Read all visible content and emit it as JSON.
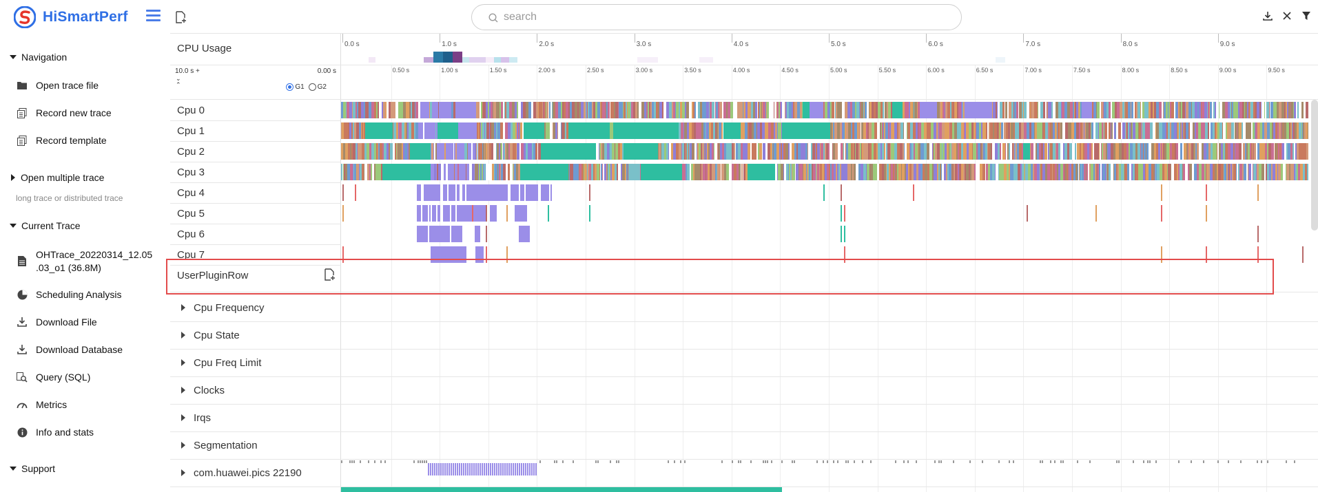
{
  "app": {
    "title": "HiSmartPerf"
  },
  "search": {
    "placeholder": "search"
  },
  "sidebar": {
    "sections": [
      {
        "label": "Navigation",
        "items": [
          "Open trace file",
          "Record new trace",
          "Record template"
        ]
      },
      {
        "label": "Open multiple trace",
        "sub": "long trace or distributed trace"
      },
      {
        "label": "Current Trace",
        "items": [
          "OHTrace_20220314_12.05",
          ".03_o1 (36.8M)",
          "Scheduling Analysis",
          "Download File",
          "Download Database",
          "Query (SQL)",
          "Metrics",
          "Info and stats"
        ]
      },
      {
        "label": "Support"
      }
    ]
  },
  "timeline": {
    "cpu_usage_label": "CPU Usage",
    "range_start": "10.0 s",
    "range_plus": "+",
    "range_end": "0.00 s",
    "radio_g1": "G1",
    "radio_g2": "G2",
    "top_ticks": [
      "0.0 s",
      "1.0 s",
      "2.0 s",
      "3.0 s",
      "4.0 s",
      "5.0 s",
      "6.0 s",
      "7.0 s",
      "8.0 s",
      "9.0 s"
    ],
    "sub_ticks": [
      "0.50 s",
      "1.00 s",
      "1.50 s",
      "2.00 s",
      "2.50 s",
      "3.00 s",
      "3.50 s",
      "4.00 s",
      "4.50 s",
      "5.00 s",
      "5.50 s",
      "6.00 s",
      "6.50 s",
      "7.00 s",
      "7.50 s",
      "8.00 s",
      "8.50 s",
      "9.00 s",
      "9.50 s"
    ],
    "cpu_rows": [
      "Cpu 0",
      "Cpu 1",
      "Cpu 2",
      "Cpu 3",
      "Cpu 4",
      "Cpu 5",
      "Cpu 6",
      "Cpu 7"
    ],
    "plugin_row": "UserPluginRow",
    "groups": [
      "Cpu Frequency",
      "Cpu State",
      "Cpu Freq Limit",
      "Clocks",
      "Irqs",
      "Segmentation",
      "com.huawei.pics 22190"
    ]
  },
  "colors": {
    "accent": "#2f6fe5",
    "highlight": "#e24b4b",
    "purple": "#9b8ee8",
    "teal": "#2ebea0"
  }
}
